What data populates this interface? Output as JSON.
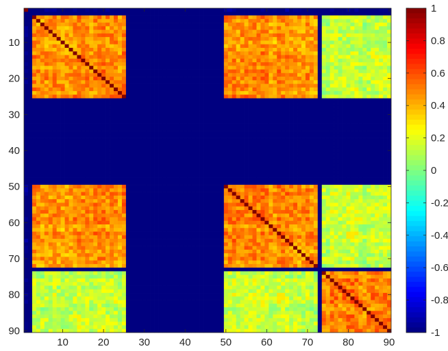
{
  "chart_data": {
    "type": "heatmap",
    "title": "",
    "xlabel": "",
    "ylabel": "",
    "n": 90,
    "xlim": [
      0.5,
      90.5
    ],
    "ylim": [
      0.5,
      90.5
    ],
    "x_ticks": [
      10,
      20,
      30,
      40,
      50,
      60,
      70,
      80,
      90
    ],
    "y_ticks": [
      10,
      20,
      30,
      40,
      50,
      60,
      70,
      80,
      90
    ],
    "y_direction": "reverse",
    "colormap": "jet",
    "clim": [
      -1,
      1
    ],
    "colorbar_ticks": [
      1,
      0.8,
      0.6,
      0.4,
      0.2,
      0,
      -0.2,
      -0.4,
      -0.6,
      -0.8,
      -1
    ],
    "colorbar_tick_labels": [
      "1",
      "0.8",
      "0.6",
      "0.4",
      "0.2",
      "0",
      "-0.2",
      "-0.4",
      "-0.6",
      "-0.8",
      "-1"
    ],
    "colorbar_location": "right",
    "diagonal_value": 1,
    "missing_value": -1,
    "missing_indices": [
      2,
      26,
      27,
      28,
      29,
      30,
      31,
      32,
      33,
      34,
      35,
      36,
      37,
      38,
      39,
      40,
      41,
      42,
      43,
      44,
      45,
      46,
      47,
      48,
      49,
      73
    ],
    "blocks": [
      {
        "rows": [
          3,
          25
        ],
        "cols": [
          3,
          25
        ],
        "value": 0.48
      },
      {
        "rows": [
          3,
          25
        ],
        "cols": [
          50,
          72
        ],
        "value": 0.47
      },
      {
        "rows": [
          3,
          25
        ],
        "cols": [
          74,
          90
        ],
        "value": 0.13
      },
      {
        "rows": [
          50,
          72
        ],
        "cols": [
          3,
          25
        ],
        "value": 0.47
      },
      {
        "rows": [
          50,
          72
        ],
        "cols": [
          50,
          72
        ],
        "value": 0.48
      },
      {
        "rows": [
          50,
          72
        ],
        "cols": [
          74,
          90
        ],
        "value": 0.13
      },
      {
        "rows": [
          74,
          90
        ],
        "cols": [
          3,
          25
        ],
        "value": 0.13
      },
      {
        "rows": [
          74,
          90
        ],
        "cols": [
          50,
          72
        ],
        "value": 0.13
      },
      {
        "rows": [
          74,
          90
        ],
        "cols": [
          74,
          90
        ],
        "value": 0.48
      }
    ]
  }
}
